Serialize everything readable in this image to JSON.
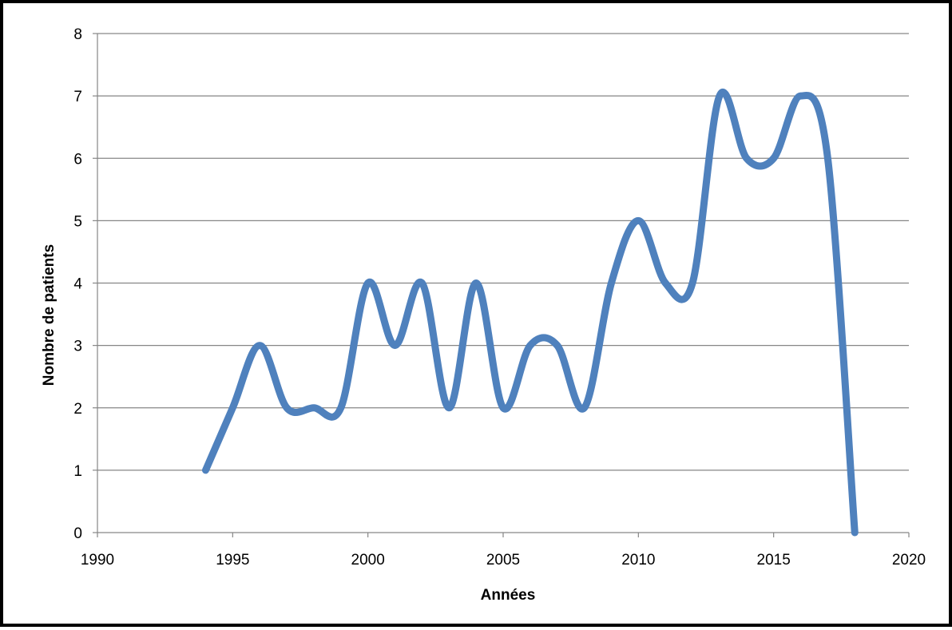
{
  "chart_data": {
    "type": "line",
    "title": "",
    "xlabel": "Années",
    "ylabel": "Nombre de patients",
    "xlim": [
      1990,
      2020
    ],
    "ylim": [
      0,
      8
    ],
    "x_ticks": [
      1990,
      1995,
      2000,
      2005,
      2010,
      2015,
      2020
    ],
    "y_ticks": [
      0,
      1,
      2,
      3,
      4,
      5,
      6,
      7,
      8
    ],
    "grid": "horizontal",
    "legend": "none",
    "smoothed": true,
    "series": [
      {
        "color": "#4f81bd",
        "x": [
          1994,
          1995,
          1996,
          1997,
          1998,
          1999,
          2000,
          2001,
          2002,
          2003,
          2004,
          2005,
          2006,
          2007,
          2008,
          2009,
          2010,
          2011,
          2012,
          2013,
          2014,
          2015,
          2016,
          2017,
          2018
        ],
        "y": [
          1,
          2,
          3,
          2,
          2,
          2,
          4,
          3,
          4,
          2,
          4,
          2,
          3,
          3,
          2,
          4,
          5,
          4,
          4,
          7,
          6,
          6,
          7,
          6,
          0
        ]
      }
    ]
  }
}
